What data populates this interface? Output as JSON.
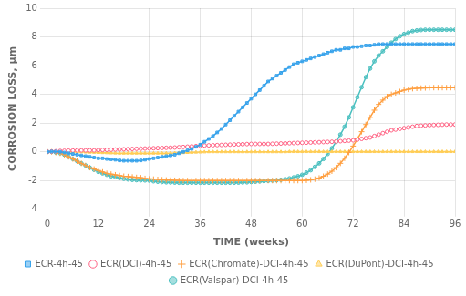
{
  "chart_data": {
    "type": "line",
    "xlabel": "TIME (weeks)",
    "ylabel": "CORROSION LOSS, µm",
    "xlim": [
      0,
      96
    ],
    "ylim": [
      -4,
      10
    ],
    "xticks": [
      0,
      12,
      24,
      36,
      48,
      60,
      72,
      84,
      96
    ],
    "yticks": [
      -4,
      -2,
      0,
      2,
      4,
      6,
      8,
      10
    ],
    "grid": true,
    "legend": "bottom",
    "x": [
      0,
      1,
      2,
      3,
      4,
      5,
      6,
      7,
      8,
      9,
      10,
      11,
      12,
      13,
      14,
      15,
      16,
      17,
      18,
      19,
      20,
      21,
      22,
      23,
      24,
      25,
      26,
      27,
      28,
      29,
      30,
      31,
      32,
      33,
      34,
      35,
      36,
      37,
      38,
      39,
      40,
      41,
      42,
      43,
      44,
      45,
      46,
      47,
      48,
      49,
      50,
      51,
      52,
      53,
      54,
      55,
      56,
      57,
      58,
      59,
      60,
      61,
      62,
      63,
      64,
      65,
      66,
      67,
      68,
      69,
      70,
      71,
      72,
      73,
      74,
      75,
      76,
      77,
      78,
      79,
      80,
      81,
      82,
      83,
      84,
      85,
      86,
      87,
      88,
      89,
      90,
      91,
      92,
      93,
      94,
      95,
      96
    ],
    "series": [
      {
        "name": "ECR-4h-45",
        "marker": "square",
        "values": [
          0,
          0.02,
          0.02,
          0.0,
          -0.05,
          -0.1,
          -0.15,
          -0.2,
          -0.25,
          -0.3,
          -0.35,
          -0.4,
          -0.45,
          -0.45,
          -0.5,
          -0.52,
          -0.55,
          -0.6,
          -0.62,
          -0.62,
          -0.62,
          -0.62,
          -0.6,
          -0.55,
          -0.5,
          -0.45,
          -0.4,
          -0.35,
          -0.3,
          -0.25,
          -0.2,
          -0.1,
          0.0,
          0.1,
          0.2,
          0.35,
          0.5,
          0.7,
          0.9,
          1.1,
          1.35,
          1.6,
          1.9,
          2.2,
          2.5,
          2.8,
          3.1,
          3.4,
          3.7,
          4.0,
          4.3,
          4.6,
          4.9,
          5.1,
          5.3,
          5.5,
          5.7,
          5.9,
          6.1,
          6.2,
          6.3,
          6.4,
          6.5,
          6.6,
          6.7,
          6.8,
          6.9,
          7.0,
          7.1,
          7.1,
          7.2,
          7.2,
          7.3,
          7.3,
          7.35,
          7.4,
          7.4,
          7.45,
          7.5,
          7.5,
          7.5,
          7.5,
          7.5,
          7.5,
          7.5,
          7.5,
          7.5,
          7.5,
          7.5,
          7.5,
          7.5,
          7.5,
          7.5,
          7.5,
          7.5,
          7.5,
          7.5
        ]
      },
      {
        "name": "ECR(DCI)-4h-45",
        "marker": "circle-open",
        "values": [
          0,
          0.02,
          0.04,
          0.06,
          0.07,
          0.08,
          0.09,
          0.1,
          0.1,
          0.1,
          0.1,
          0.1,
          0.12,
          0.13,
          0.14,
          0.15,
          0.16,
          0.17,
          0.18,
          0.19,
          0.2,
          0.21,
          0.22,
          0.23,
          0.24,
          0.25,
          0.26,
          0.27,
          0.28,
          0.29,
          0.3,
          0.32,
          0.34,
          0.36,
          0.38,
          0.4,
          0.42,
          0.44,
          0.45,
          0.46,
          0.47,
          0.48,
          0.49,
          0.5,
          0.51,
          0.52,
          0.53,
          0.54,
          0.55,
          0.55,
          0.55,
          0.55,
          0.55,
          0.56,
          0.57,
          0.58,
          0.59,
          0.6,
          0.61,
          0.62,
          0.63,
          0.64,
          0.65,
          0.66,
          0.67,
          0.68,
          0.69,
          0.7,
          0.72,
          0.74,
          0.76,
          0.78,
          0.8,
          0.85,
          0.9,
          0.95,
          1.0,
          1.1,
          1.2,
          1.3,
          1.4,
          1.5,
          1.55,
          1.6,
          1.65,
          1.7,
          1.75,
          1.8,
          1.82,
          1.84,
          1.86,
          1.87,
          1.88,
          1.89,
          1.9,
          1.9,
          1.9
        ]
      },
      {
        "name": "ECR(Chromate)-DCI-4h-45",
        "marker": "plus",
        "values": [
          0,
          0.0,
          -0.05,
          -0.1,
          -0.2,
          -0.35,
          -0.5,
          -0.65,
          -0.8,
          -0.95,
          -1.1,
          -1.2,
          -1.3,
          -1.4,
          -1.5,
          -1.55,
          -1.6,
          -1.65,
          -1.7,
          -1.72,
          -1.75,
          -1.78,
          -1.8,
          -1.85,
          -1.88,
          -1.9,
          -1.92,
          -1.94,
          -1.96,
          -1.97,
          -1.98,
          -1.99,
          -2.0,
          -2.0,
          -2.0,
          -2.0,
          -2.0,
          -2.0,
          -2.0,
          -2.0,
          -2.0,
          -2.0,
          -2.0,
          -2.0,
          -2.0,
          -2.0,
          -2.0,
          -2.0,
          -2.0,
          -2.0,
          -2.0,
          -2.0,
          -2.0,
          -2.0,
          -2.0,
          -2.0,
          -2.0,
          -2.0,
          -2.0,
          -2.0,
          -2.0,
          -1.98,
          -1.95,
          -1.9,
          -1.82,
          -1.7,
          -1.55,
          -1.35,
          -1.1,
          -0.8,
          -0.45,
          -0.05,
          0.4,
          0.9,
          1.4,
          1.9,
          2.4,
          2.9,
          3.3,
          3.6,
          3.85,
          4.0,
          4.1,
          4.2,
          4.3,
          4.35,
          4.4,
          4.42,
          4.44,
          4.45,
          4.46,
          4.47,
          4.47,
          4.47,
          4.47,
          4.47,
          4.47
        ]
      },
      {
        "name": "ECR(DuPont)-DCI-4h-45",
        "marker": "triangle",
        "values": [
          0,
          0.01,
          0.01,
          0.01,
          0.0,
          0.0,
          0.0,
          -0.01,
          -0.01,
          -0.02,
          -0.03,
          -0.04,
          -0.05,
          -0.06,
          -0.07,
          -0.08,
          -0.09,
          -0.1,
          -0.1,
          -0.1,
          -0.1,
          -0.1,
          -0.1,
          -0.1,
          -0.1,
          -0.1,
          -0.1,
          -0.1,
          -0.1,
          -0.09,
          -0.08,
          -0.07,
          -0.06,
          -0.05,
          -0.04,
          -0.03,
          -0.02,
          -0.01,
          0.0,
          0.0,
          0.0,
          0.0,
          0.0,
          0.0,
          0.0,
          0.0,
          0.0,
          0.0,
          0.0,
          0.0,
          0.0,
          0.0,
          0.0,
          0.0,
          0.0,
          0.0,
          0.0,
          0.01,
          0.01,
          0.01,
          0.01,
          0.01,
          0.01,
          0.01,
          0.01,
          0.01,
          0.01,
          0.01,
          0.01,
          0.01,
          0.01,
          0.01,
          0.01,
          0.01,
          0.01,
          0.01,
          0.01,
          0.01,
          0.01,
          0.01,
          0.01,
          0.01,
          0.01,
          0.01,
          0.01,
          0.01,
          0.01,
          0.01,
          0.01,
          0.01,
          0.01,
          0.01,
          0.01,
          0.01,
          0.01,
          0.01,
          0.01
        ]
      },
      {
        "name": "ECR(Valspar)-DCI-4h-45",
        "marker": "circle",
        "values": [
          0,
          0.0,
          -0.05,
          -0.1,
          -0.2,
          -0.35,
          -0.5,
          -0.65,
          -0.8,
          -0.95,
          -1.1,
          -1.25,
          -1.4,
          -1.5,
          -1.6,
          -1.7,
          -1.75,
          -1.82,
          -1.88,
          -1.92,
          -1.95,
          -1.97,
          -1.98,
          -1.99,
          -2.0,
          -2.05,
          -2.08,
          -2.1,
          -2.12,
          -2.13,
          -2.14,
          -2.15,
          -2.15,
          -2.15,
          -2.15,
          -2.15,
          -2.15,
          -2.15,
          -2.15,
          -2.15,
          -2.15,
          -2.15,
          -2.15,
          -2.15,
          -2.15,
          -2.14,
          -2.13,
          -2.12,
          -2.1,
          -2.08,
          -2.06,
          -2.04,
          -2.02,
          -2.0,
          -1.98,
          -1.95,
          -1.9,
          -1.85,
          -1.78,
          -1.7,
          -1.6,
          -1.45,
          -1.28,
          -1.05,
          -0.8,
          -0.5,
          -0.15,
          0.25,
          0.7,
          1.2,
          1.75,
          2.4,
          3.1,
          3.8,
          4.5,
          5.2,
          5.8,
          6.3,
          6.7,
          7.0,
          7.3,
          7.6,
          7.85,
          8.05,
          8.2,
          8.3,
          8.4,
          8.45,
          8.48,
          8.5,
          8.5,
          8.5,
          8.5,
          8.5,
          8.5,
          8.5,
          8.5
        ]
      }
    ]
  }
}
